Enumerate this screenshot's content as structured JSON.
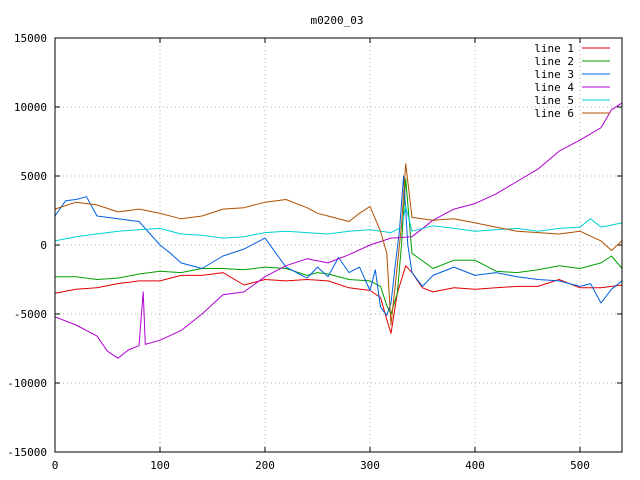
{
  "chart_data": {
    "type": "line",
    "title": "m0200_03",
    "xlabel": "",
    "ylabel": "",
    "xlim": [
      0,
      540
    ],
    "ylim": [
      -15000,
      15000
    ],
    "xticks": [
      0,
      100,
      200,
      300,
      400,
      500
    ],
    "yticks": [
      -15000,
      -10000,
      -5000,
      0,
      5000,
      10000,
      15000
    ],
    "grid": true,
    "legend_position": "top-right",
    "series": [
      {
        "name": "line 1",
        "color": "#e00000",
        "x": [
          0,
          20,
          40,
          60,
          80,
          100,
          120,
          140,
          160,
          180,
          200,
          220,
          240,
          260,
          280,
          300,
          310,
          316,
          320,
          326,
          330,
          334,
          340,
          350,
          360,
          380,
          400,
          420,
          440,
          460,
          480,
          500,
          520,
          540
        ],
        "y": [
          -3500,
          -3200,
          -3100,
          -2800,
          -2600,
          -2600,
          -2200,
          -2200,
          -2000,
          -2900,
          -2500,
          -2600,
          -2500,
          -2600,
          -3100,
          -3300,
          -3800,
          -5400,
          -6400,
          -3500,
          -2500,
          -1500,
          -2000,
          -3100,
          -3400,
          -3100,
          -3200,
          -3100,
          -3000,
          -3000,
          -2500,
          -3100,
          -3100,
          -2900
        ]
      },
      {
        "name": "line 2",
        "color": "#00a000",
        "x": [
          0,
          20,
          40,
          60,
          80,
          100,
          120,
          140,
          160,
          180,
          200,
          220,
          240,
          250,
          260,
          280,
          300,
          310,
          316,
          320,
          326,
          330,
          334,
          340,
          360,
          380,
          400,
          420,
          440,
          460,
          480,
          500,
          520,
          530,
          540
        ],
        "y": [
          -2300,
          -2300,
          -2500,
          -2400,
          -2100,
          -1900,
          -2000,
          -1700,
          -1700,
          -1800,
          -1600,
          -1700,
          -2200,
          -2000,
          -2100,
          -2500,
          -2600,
          -3000,
          -4400,
          -5000,
          -3500,
          0,
          4800,
          -600,
          -1700,
          -1100,
          -1100,
          -1900,
          -2000,
          -1800,
          -1500,
          -1700,
          -1300,
          -800,
          -1700
        ]
      },
      {
        "name": "line 3",
        "color": "#0060e0",
        "x": [
          0,
          10,
          20,
          30,
          40,
          60,
          80,
          100,
          110,
          120,
          140,
          160,
          180,
          200,
          220,
          240,
          250,
          260,
          270,
          280,
          290,
          300,
          305,
          310,
          316,
          320,
          324,
          328,
          332,
          336,
          340,
          350,
          360,
          380,
          400,
          420,
          440,
          460,
          480,
          500,
          510,
          520,
          530,
          540
        ],
        "y": [
          2100,
          3200,
          3300,
          3500,
          2100,
          1900,
          1700,
          0,
          -600,
          -1300,
          -1700,
          -800,
          -300,
          500,
          -1600,
          -2400,
          -1600,
          -2300,
          -900,
          -2000,
          -1600,
          -3300,
          -1800,
          -4500,
          -5100,
          -4200,
          -1500,
          1000,
          5000,
          0,
          -2000,
          -3000,
          -2200,
          -1600,
          -2200,
          -2000,
          -2300,
          -2500,
          -2600,
          -3000,
          -2800,
          -4200,
          -3200,
          -2600
        ]
      },
      {
        "name": "line 4",
        "color": "#b000d0",
        "x": [
          0,
          20,
          40,
          50,
          60,
          70,
          80,
          84,
          86,
          100,
          120,
          140,
          160,
          180,
          200,
          220,
          240,
          260,
          280,
          300,
          320,
          340,
          360,
          380,
          400,
          420,
          440,
          460,
          480,
          500,
          520,
          530,
          540
        ],
        "y": [
          -5200,
          -5800,
          -6600,
          -7700,
          -8200,
          -7600,
          -7300,
          -3400,
          -7200,
          -6900,
          -6200,
          -5000,
          -3600,
          -3400,
          -2300,
          -1500,
          -1000,
          -1300,
          -700,
          0,
          500,
          600,
          1800,
          2600,
          3000,
          3700,
          4600,
          5500,
          6800,
          7600,
          8500,
          9800,
          10300
        ]
      },
      {
        "name": "line 5",
        "color": "#00d0d0",
        "x": [
          0,
          20,
          40,
          60,
          80,
          100,
          120,
          140,
          160,
          180,
          200,
          220,
          240,
          260,
          280,
          300,
          320,
          330,
          334,
          340,
          360,
          380,
          400,
          420,
          440,
          460,
          480,
          500,
          510,
          520,
          540
        ],
        "y": [
          300,
          600,
          800,
          1000,
          1100,
          1200,
          800,
          700,
          500,
          600,
          900,
          1000,
          900,
          800,
          1000,
          1100,
          900,
          1300,
          2800,
          1000,
          1400,
          1200,
          1000,
          1100,
          1200,
          1000,
          1200,
          1300,
          1900,
          1300,
          1600
        ]
      },
      {
        "name": "line 6",
        "color": "#b05000",
        "x": [
          0,
          20,
          40,
          60,
          80,
          100,
          120,
          140,
          160,
          180,
          200,
          220,
          240,
          250,
          260,
          280,
          290,
          300,
          310,
          316,
          320,
          326,
          330,
          334,
          340,
          360,
          380,
          400,
          420,
          440,
          460,
          480,
          500,
          520,
          530,
          540
        ],
        "y": [
          2600,
          3100,
          2900,
          2400,
          2600,
          2300,
          1900,
          2100,
          2600,
          2700,
          3100,
          3300,
          2700,
          2300,
          2100,
          1700,
          2300,
          2800,
          1000,
          -600,
          -5800,
          -1500,
          1400,
          5900,
          2000,
          1800,
          1900,
          1600,
          1300,
          1000,
          900,
          800,
          1000,
          300,
          -400,
          300
        ]
      }
    ]
  }
}
